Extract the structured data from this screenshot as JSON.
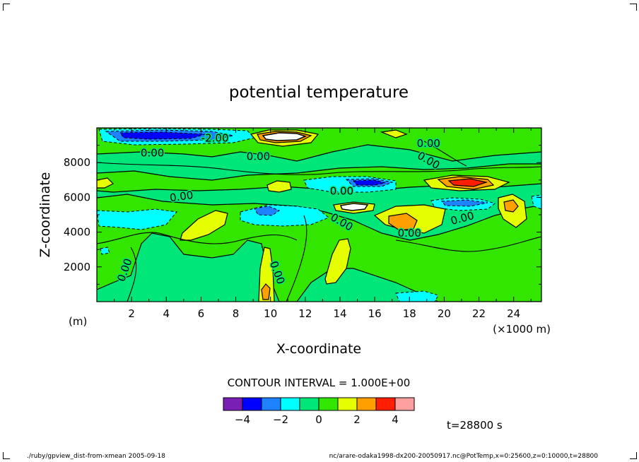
{
  "chart_data": {
    "type": "contour",
    "title": "potential temperature",
    "xlabel": "X-coordinate",
    "ylabel": "Z-coordinate",
    "x_unit": "(×1000 m)",
    "y_unit": "(m)",
    "x_ticks": [
      2,
      4,
      6,
      8,
      10,
      12,
      14,
      16,
      18,
      20,
      22,
      24
    ],
    "y_ticks": [
      2000,
      4000,
      6000,
      8000
    ],
    "xlim": [
      0,
      25.6
    ],
    "ylim": [
      0,
      10000
    ],
    "contour_interval_text": "CONTOUR INTERVAL = 1.000E+00",
    "contour_interval": 1.0,
    "contour_labels": [
      "0.00",
      "0.00",
      "0.00",
      "0.00",
      "0.00",
      "0.00",
      "0.00",
      "0.00",
      "0.00",
      "0.00",
      "0.00",
      "-2.00"
    ],
    "colorbar": {
      "levels": [
        -5,
        -4,
        -3,
        -2,
        -1,
        0,
        1,
        2,
        3,
        4,
        5
      ],
      "colors": [
        "#7a1fb4",
        "#0000ff",
        "#1e82ff",
        "#00ffff",
        "#00e678",
        "#32e600",
        "#e6ff00",
        "#ffa000",
        "#ff1e00",
        "#ffa0a0"
      ],
      "tick_labels": [
        "−4",
        "−2",
        "0",
        "2",
        "4"
      ]
    },
    "time_label": "t=28800 s"
  },
  "footer": {
    "left": "./ruby/gpview_dist-from-xmean  2005-09-18",
    "right": "nc/arare-odaka1998-dx200-20050917.nc@PotTemp,x=0:25600,z=0:10000,t=28800"
  }
}
